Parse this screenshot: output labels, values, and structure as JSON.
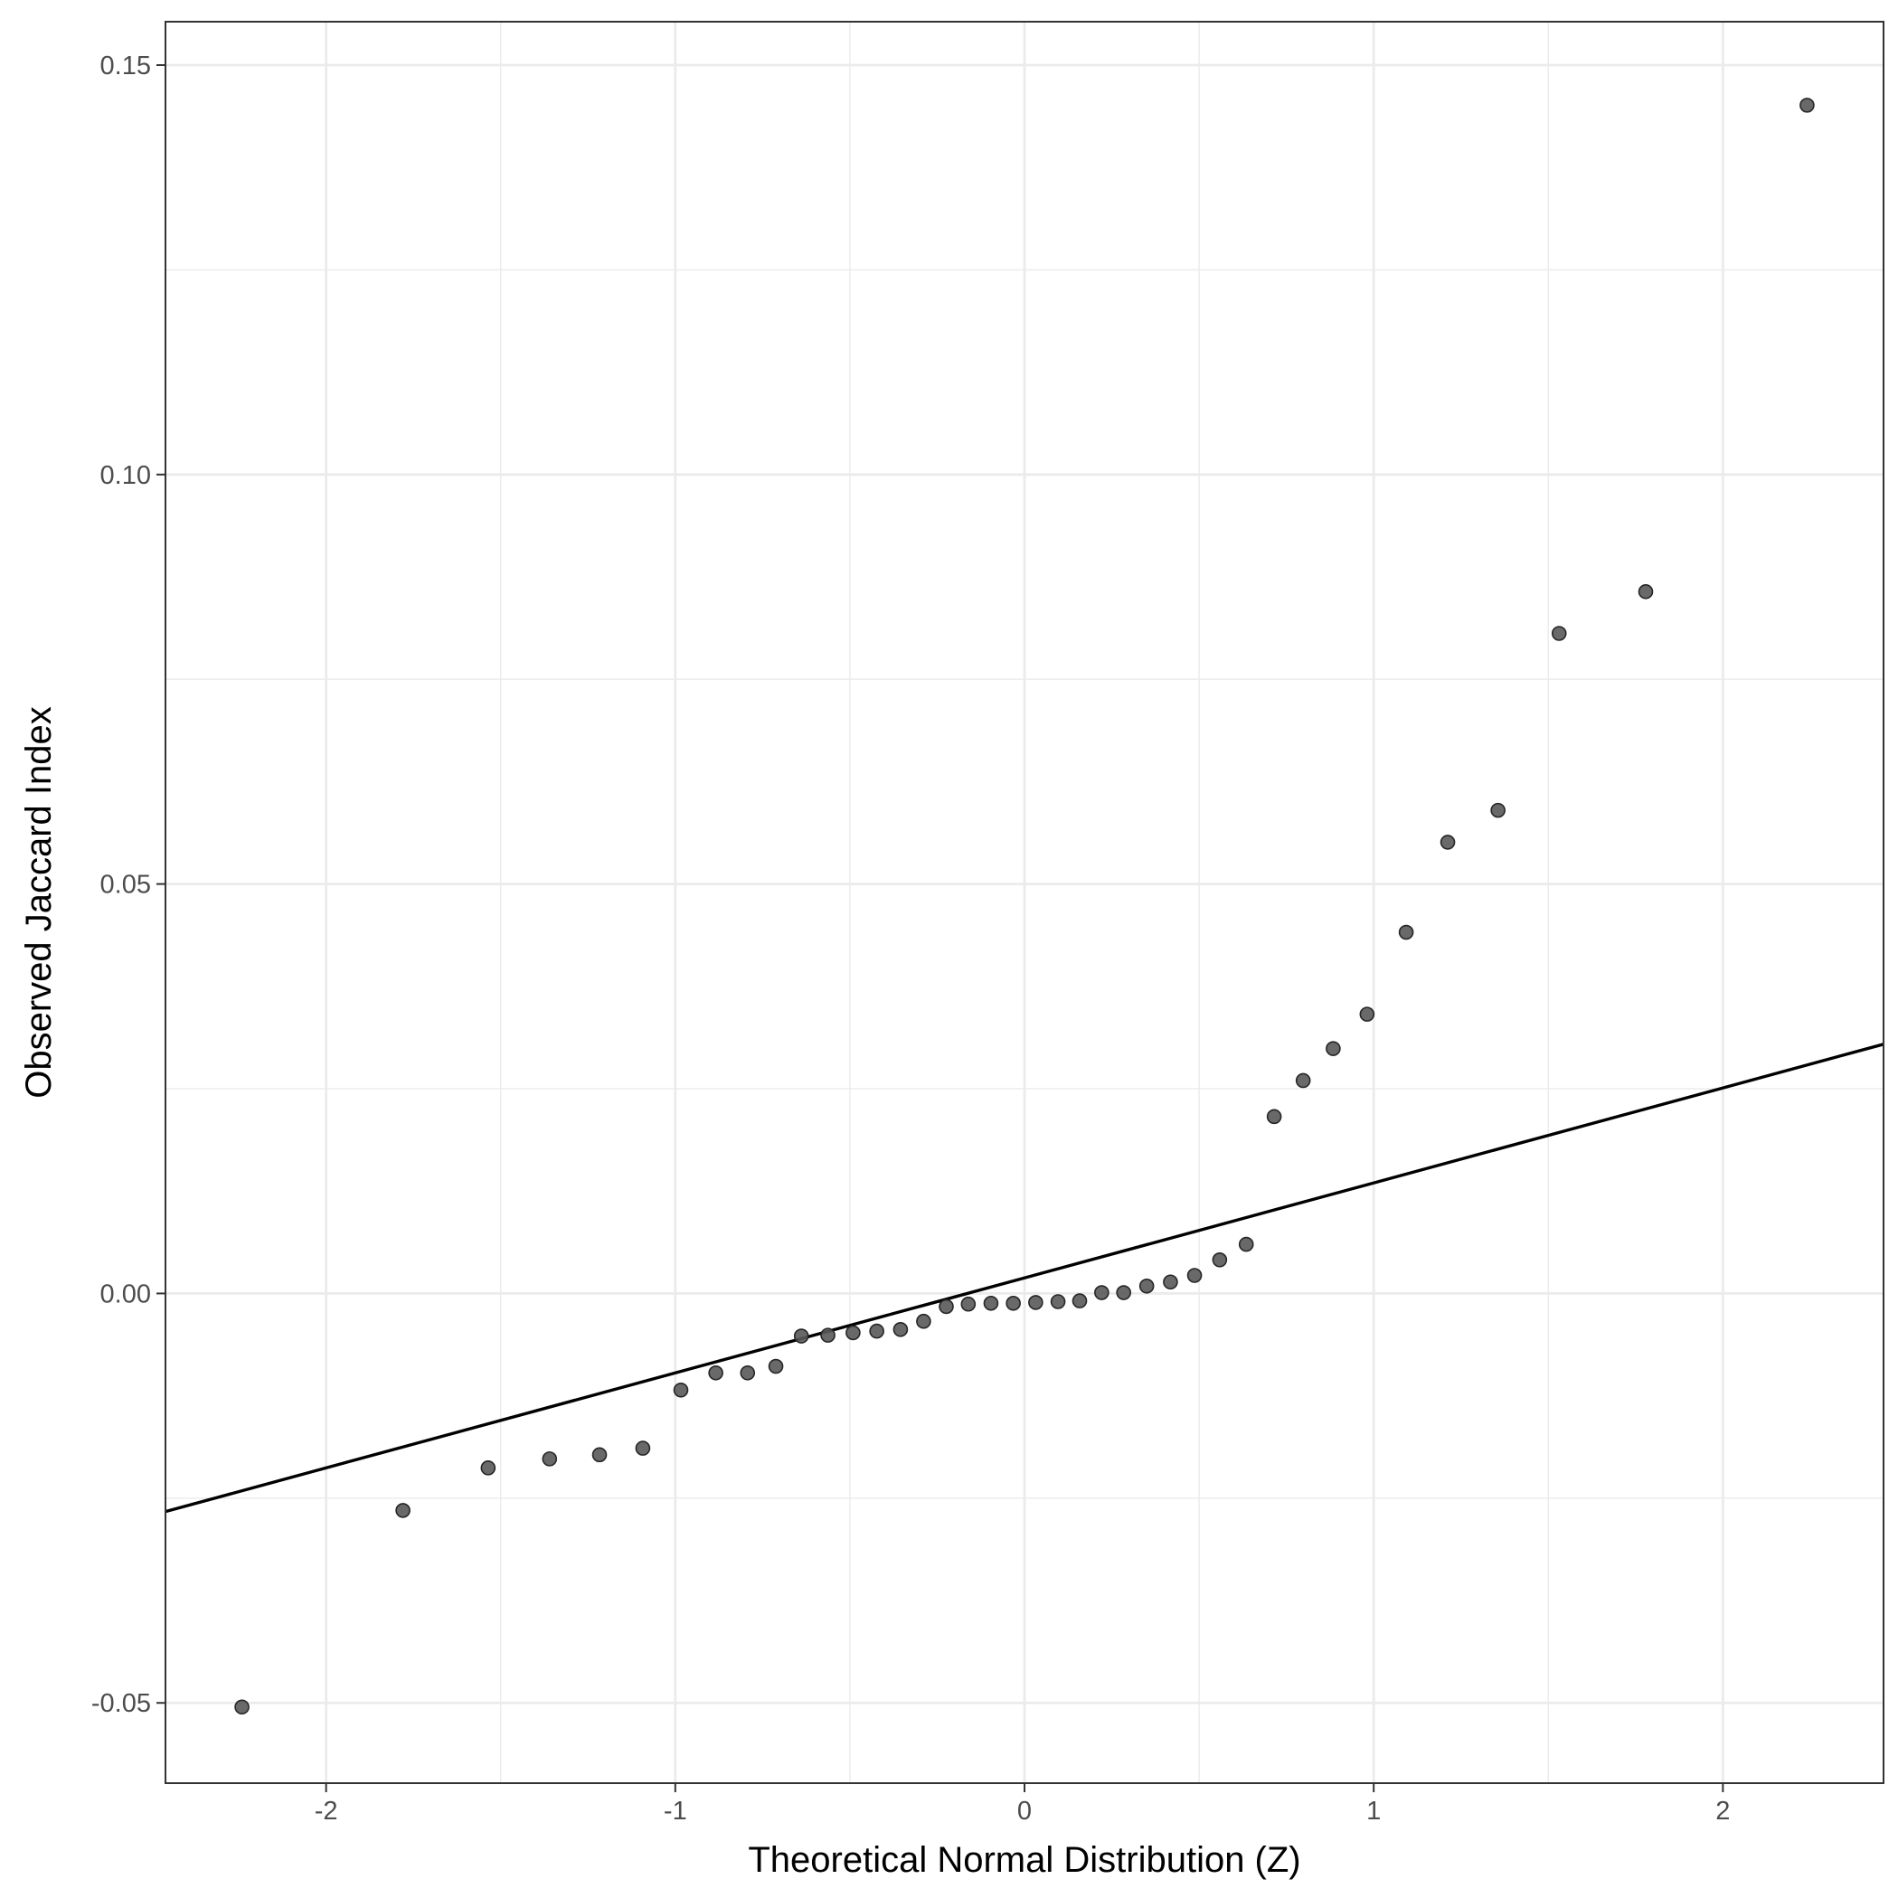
{
  "chart_data": {
    "type": "scatter",
    "title": "",
    "xlabel": "Theoretical Normal Distribution (Z)",
    "ylabel": "Observed Jaccard Index",
    "xlim": [
      -2.46,
      2.46
    ],
    "ylim": [
      -0.0598,
      0.1553
    ],
    "x_ticks": [
      -2,
      -1,
      0,
      1,
      2
    ],
    "x_tick_labels": [
      "-2",
      "-1",
      "0",
      "1",
      "2"
    ],
    "y_ticks": [
      -0.05,
      0.0,
      0.05,
      0.1,
      0.15
    ],
    "y_tick_labels": [
      "-0.05",
      "0.00",
      "0.05",
      "0.10",
      "0.15"
    ],
    "grid": true,
    "point_color": "#595959",
    "line_color": "#000000",
    "reference_line": {
      "intercept": 0.0019,
      "slope": 0.0116
    },
    "points": [
      {
        "x": -2.241,
        "y": -0.0505
      },
      {
        "x": -1.78,
        "y": -0.0265
      },
      {
        "x": -1.536,
        "y": -0.0213
      },
      {
        "x": -1.36,
        "y": -0.0202
      },
      {
        "x": -1.217,
        "y": -0.0197
      },
      {
        "x": -1.093,
        "y": -0.0189
      },
      {
        "x": -0.984,
        "y": -0.0118
      },
      {
        "x": -0.884,
        "y": -0.0097
      },
      {
        "x": -0.793,
        "y": -0.0097
      },
      {
        "x": -0.712,
        "y": -0.0089
      },
      {
        "x": -0.639,
        "y": -0.0052
      },
      {
        "x": -0.563,
        "y": -0.0051
      },
      {
        "x": -0.491,
        "y": -0.0048
      },
      {
        "x": -0.423,
        "y": -0.0046
      },
      {
        "x": -0.355,
        "y": -0.0044
      },
      {
        "x": -0.289,
        "y": -0.0034
      },
      {
        "x": -0.224,
        "y": -0.0016
      },
      {
        "x": -0.161,
        "y": -0.0013
      },
      {
        "x": -0.096,
        "y": -0.0012
      },
      {
        "x": -0.032,
        "y": -0.0012
      },
      {
        "x": 0.032,
        "y": -0.0011
      },
      {
        "x": 0.096,
        "y": -0.001
      },
      {
        "x": 0.158,
        "y": -0.0009
      },
      {
        "x": 0.221,
        "y": 0.0001
      },
      {
        "x": 0.284,
        "y": 0.0001
      },
      {
        "x": 0.35,
        "y": 0.0009
      },
      {
        "x": 0.418,
        "y": 0.0014
      },
      {
        "x": 0.487,
        "y": 0.0022
      },
      {
        "x": 0.559,
        "y": 0.0041
      },
      {
        "x": 0.635,
        "y": 0.006
      },
      {
        "x": 0.715,
        "y": 0.0216
      },
      {
        "x": 0.798,
        "y": 0.026
      },
      {
        "x": 0.884,
        "y": 0.0299
      },
      {
        "x": 0.981,
        "y": 0.0341
      },
      {
        "x": 1.093,
        "y": 0.0441
      },
      {
        "x": 1.212,
        "y": 0.0551
      },
      {
        "x": 1.356,
        "y": 0.059
      },
      {
        "x": 1.531,
        "y": 0.0806
      },
      {
        "x": 1.779,
        "y": 0.0857
      },
      {
        "x": 2.241,
        "y": 0.1451
      }
    ]
  }
}
